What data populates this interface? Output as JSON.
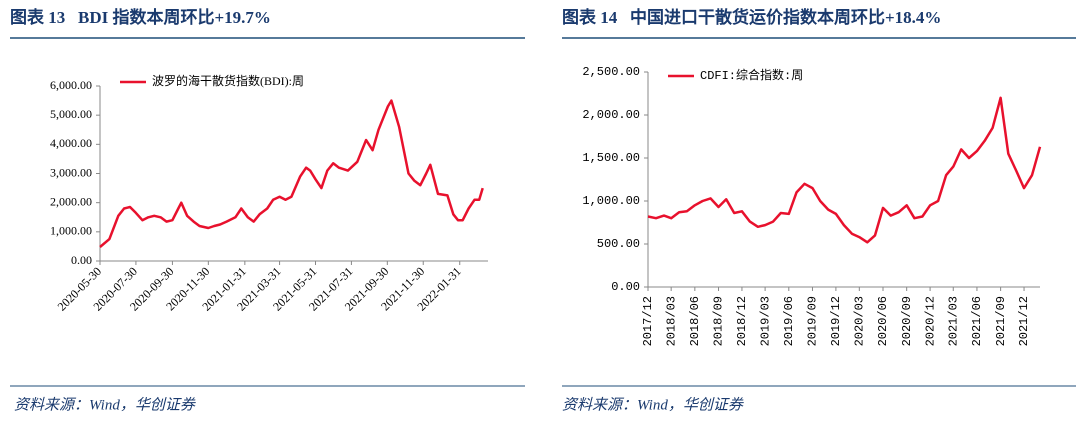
{
  "figures": [
    {
      "title": "图表 13   BDI 指数本周环比+19.7%",
      "source": "资料来源：Wind，华创证券"
    },
    {
      "title": "图表 14   中国进口干散货运价指数本周环比+18.4%",
      "source": "资料来源：Wind，华创证券"
    }
  ],
  "chart_data": [
    {
      "type": "line",
      "legend": "upper left",
      "xlim": [
        "2020-05-30",
        "2022-03-20"
      ],
      "xticks": [
        "2020-05-30",
        "2020-07-30",
        "2020-09-30",
        "2020-11-30",
        "2021-01-31",
        "2021-03-31",
        "2021-05-31",
        "2021-07-31",
        "2021-09-30",
        "2021-11-30",
        "2022-01-31"
      ],
      "ylim": [
        0,
        6000
      ],
      "yticks": [
        {
          "value": 0,
          "label": "0.00"
        },
        {
          "value": 1000,
          "label": "1,000.00"
        },
        {
          "value": 2000,
          "label": "2,000.00"
        },
        {
          "value": 3000,
          "label": "3,000.00"
        },
        {
          "value": 4000,
          "label": "4,000.00"
        },
        {
          "value": 5000,
          "label": "5,000.00"
        },
        {
          "value": 6000,
          "label": "6,000.00"
        }
      ],
      "x": [
        "2020-05-30",
        "2020-06-15",
        "2020-06-30",
        "2020-07-10",
        "2020-07-20",
        "2020-07-30",
        "2020-08-10",
        "2020-08-20",
        "2020-08-30",
        "2020-09-10",
        "2020-09-20",
        "2020-09-30",
        "2020-10-10",
        "2020-10-15",
        "2020-10-25",
        "2020-11-05",
        "2020-11-15",
        "2020-11-30",
        "2020-12-10",
        "2020-12-20",
        "2020-12-31",
        "2021-01-15",
        "2021-01-25",
        "2021-02-05",
        "2021-02-15",
        "2021-02-25",
        "2021-03-10",
        "2021-03-20",
        "2021-03-31",
        "2021-04-10",
        "2021-04-20",
        "2021-05-05",
        "2021-05-15",
        "2021-05-22",
        "2021-05-31",
        "2021-06-10",
        "2021-06-20",
        "2021-06-30",
        "2021-07-10",
        "2021-07-25",
        "2021-08-10",
        "2021-08-25",
        "2021-09-05",
        "2021-09-15",
        "2021-10-01",
        "2021-10-07",
        "2021-10-20",
        "2021-11-05",
        "2021-11-15",
        "2021-11-25",
        "2021-12-05",
        "2021-12-12",
        "2021-12-25",
        "2022-01-10",
        "2022-01-20",
        "2022-01-28",
        "2022-02-05",
        "2022-02-15",
        "2022-02-25",
        "2022-03-05",
        "2022-03-11"
      ],
      "series": [
        {
          "name": "波罗的海干散货指数(BDI):周",
          "color": "#e8112d",
          "values": [
            480,
            750,
            1550,
            1800,
            1850,
            1650,
            1400,
            1500,
            1550,
            1500,
            1350,
            1400,
            1800,
            2000,
            1550,
            1350,
            1200,
            1130,
            1200,
            1250,
            1350,
            1500,
            1800,
            1500,
            1350,
            1600,
            1800,
            2100,
            2200,
            2100,
            2200,
            2900,
            3200,
            3100,
            2800,
            2500,
            3100,
            3350,
            3200,
            3100,
            3400,
            4150,
            3800,
            4500,
            5300,
            5500,
            4600,
            3000,
            2750,
            2600,
            3000,
            3300,
            2300,
            2250,
            1600,
            1400,
            1400,
            1800,
            2100,
            2100,
            2500
          ]
        }
      ]
    },
    {
      "type": "line",
      "legend": "upper left",
      "xlim": [
        "2017/12",
        "2022/02"
      ],
      "xticks": [
        "2017/12",
        "2018/03",
        "2018/06",
        "2018/09",
        "2018/12",
        "2019/03",
        "2019/06",
        "2019/09",
        "2019/12",
        "2020/03",
        "2020/06",
        "2020/09",
        "2020/12",
        "2021/03",
        "2021/06",
        "2021/09",
        "2021/12"
      ],
      "ylim": [
        0,
        2500
      ],
      "yticks": [
        {
          "value": 0,
          "label": "0.00"
        },
        {
          "value": 500,
          "label": "500.00"
        },
        {
          "value": 1000,
          "label": "1,000.00"
        },
        {
          "value": 1500,
          "label": "1,500.00"
        },
        {
          "value": 2000,
          "label": "2,000.00"
        },
        {
          "value": 2500,
          "label": "2,500.00"
        }
      ],
      "x": [
        "2017/12",
        "2018/01",
        "2018/02",
        "2018/03",
        "2018/04",
        "2018/05",
        "2018/06",
        "2018/07",
        "2018/08",
        "2018/09",
        "2018/10",
        "2018/11",
        "2018/12",
        "2019/01",
        "2019/02",
        "2019/03",
        "2019/04",
        "2019/05",
        "2019/06",
        "2019/07",
        "2019/08",
        "2019/09",
        "2019/10",
        "2019/11",
        "2019/12",
        "2020/01",
        "2020/02",
        "2020/03",
        "2020/04",
        "2020/05",
        "2020/06",
        "2020/07",
        "2020/08",
        "2020/09",
        "2020/10",
        "2020/11",
        "2020/12",
        "2021/01",
        "2021/02",
        "2021/03",
        "2021/04",
        "2021/05",
        "2021/06",
        "2021/07",
        "2021/08",
        "2021/09",
        "2021/10",
        "2021/11",
        "2021/12",
        "2022/01",
        "2022/02"
      ],
      "series": [
        {
          "name": "CDFI:综合指数:周",
          "color": "#e8112d",
          "values": [
            820,
            800,
            830,
            800,
            870,
            880,
            950,
            1000,
            1030,
            930,
            1020,
            860,
            880,
            760,
            700,
            720,
            760,
            860,
            850,
            1100,
            1200,
            1150,
            1000,
            900,
            850,
            720,
            620,
            580,
            520,
            600,
            920,
            830,
            870,
            950,
            800,
            820,
            950,
            1000,
            1300,
            1400,
            1600,
            1500,
            1580,
            1700,
            1850,
            2200,
            1550,
            1350,
            1150,
            1300,
            1630
          ]
        }
      ]
    }
  ]
}
